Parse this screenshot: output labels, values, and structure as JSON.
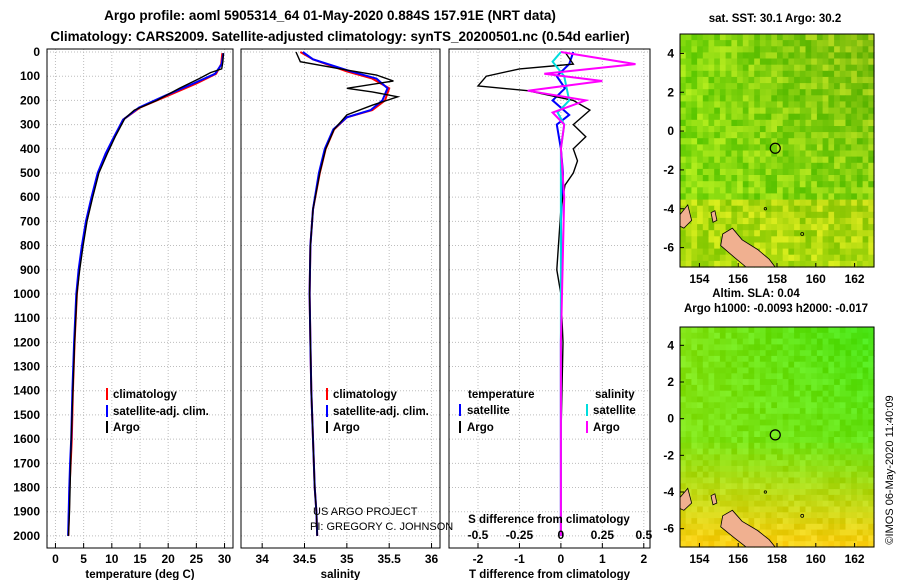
{
  "title_line1": "Argo profile: aoml 5905314_64 01-May-2020 0.884S 157.91E (NRT data)",
  "title_line2": "Climatology: CARS2009. Satellite-adjusted climatology: synTS_20200501.nc (0.54d earlier)",
  "credit": "©IMOS 06-May-2020 11:40:09",
  "project_line1": "US ARGO PROJECT",
  "project_line2": "PI: GREGORY C. JOHNSON",
  "colors": {
    "climatology": "#ff0000",
    "satellite": "#0000ff",
    "argo": "#000000",
    "sat_T": "#00dddd",
    "sat_S": "#ff00ff"
  },
  "chart_data": [
    {
      "type": "line",
      "title": "",
      "xlabel": "temperature (deg C)",
      "ylabel": "",
      "xlim": [
        -1.5,
        31.5
      ],
      "ylim": [
        2050,
        0
      ],
      "xticks": [
        "0",
        "5",
        "10",
        "15",
        "20",
        "25",
        "30"
      ],
      "xtick_values": [
        0,
        5,
        10,
        15,
        20,
        25,
        30
      ],
      "yticks": [
        "0",
        "100",
        "200",
        "300",
        "400",
        "500",
        "600",
        "700",
        "800",
        "900",
        "1000",
        "1100",
        "1200",
        "1300",
        "1400",
        "1500",
        "1600",
        "1700",
        "1800",
        "1900",
        "2000"
      ],
      "ytick_values": [
        0,
        100,
        200,
        300,
        400,
        500,
        600,
        700,
        800,
        900,
        1000,
        1100,
        1200,
        1300,
        1400,
        1500,
        1600,
        1700,
        1800,
        1900,
        2000
      ],
      "legend": [
        "climatology",
        "satellite-adj. clim.",
        "Argo"
      ],
      "series": [
        {
          "name": "climatology",
          "x": [
            29.6,
            29.4,
            28.5,
            25,
            20,
            15,
            12,
            10.5,
            9,
            7.6,
            6.5,
            5.5,
            4.8,
            4.2,
            3.8,
            3.4,
            3.1,
            2.9,
            2.7,
            2.5,
            2.4,
            2.3
          ],
          "y": [
            5,
            50,
            90,
            130,
            180,
            230,
            280,
            350,
            420,
            500,
            600,
            700,
            800,
            900,
            1000,
            1200,
            1400,
            1600,
            1700,
            1800,
            1900,
            2000
          ]
        },
        {
          "name": "satellite-adj. clim.",
          "x": [
            29.8,
            29.5,
            28.3,
            24.5,
            19.5,
            14.8,
            12,
            10.4,
            8.9,
            7.5,
            6.4,
            5.4,
            4.7,
            4.1,
            3.7,
            3.3,
            3.0,
            2.8,
            2.6,
            2.45,
            2.35,
            2.25
          ],
          "y": [
            5,
            50,
            90,
            130,
            180,
            230,
            280,
            350,
            420,
            500,
            600,
            700,
            800,
            900,
            1000,
            1200,
            1400,
            1600,
            1700,
            1800,
            1900,
            2000
          ]
        },
        {
          "name": "Argo",
          "x": [
            29.8,
            29.7,
            29.5,
            27.5,
            25.5,
            22,
            18,
            14,
            12.3,
            10.6,
            9.2,
            7.7,
            6.6,
            5.6,
            4.9,
            4.3,
            3.8,
            3.4,
            3.1,
            2.8,
            2.6,
            2.5,
            2.3
          ],
          "y": [
            5,
            40,
            70,
            85,
            110,
            150,
            200,
            240,
            275,
            350,
            420,
            500,
            600,
            700,
            800,
            900,
            1000,
            1200,
            1400,
            1600,
            1800,
            1900,
            2000
          ]
        }
      ]
    },
    {
      "type": "line",
      "xlabel": "salinity",
      "xlim": [
        33.75,
        36.1
      ],
      "ylim": [
        2050,
        0
      ],
      "xticks": [
        "34",
        "34.5",
        "35",
        "35.5",
        "36"
      ],
      "xtick_values": [
        34,
        34.5,
        35,
        35.5,
        36
      ],
      "legend": [
        "climatology",
        "satellite-adj. clim.",
        "Argo"
      ],
      "series": [
        {
          "name": "climatology",
          "x": [
            34.45,
            34.6,
            35.0,
            35.3,
            35.5,
            35.45,
            35.3,
            35.0,
            34.85,
            34.75,
            34.68,
            34.6,
            34.57,
            34.56,
            34.57,
            34.58,
            34.6,
            34.62,
            34.64,
            34.65
          ],
          "y": [
            0,
            30,
            80,
            110,
            150,
            200,
            240,
            270,
            320,
            400,
            500,
            650,
            800,
            1000,
            1200,
            1400,
            1600,
            1800,
            1900,
            2000
          ]
        },
        {
          "name": "satellite-adj. clim.",
          "x": [
            34.48,
            34.6,
            35.05,
            35.35,
            35.48,
            35.42,
            35.28,
            35.0,
            34.84,
            34.74,
            34.67,
            34.6,
            34.57,
            34.56,
            34.57,
            34.58,
            34.6,
            34.62,
            34.64,
            34.65
          ],
          "y": [
            0,
            30,
            80,
            110,
            150,
            200,
            240,
            270,
            320,
            400,
            500,
            650,
            800,
            1000,
            1200,
            1400,
            1600,
            1800,
            1900,
            2000
          ]
        },
        {
          "name": "Argo",
          "x": [
            34.4,
            34.45,
            35.0,
            35.35,
            35.55,
            35.0,
            35.3,
            35.6,
            35.3,
            35.0,
            34.85,
            34.75,
            34.68,
            34.6,
            34.57,
            34.56,
            34.57,
            34.58,
            34.6,
            34.62,
            34.64,
            34.65
          ],
          "y": [
            0,
            40,
            75,
            95,
            120,
            150,
            165,
            185,
            220,
            260,
            320,
            400,
            500,
            650,
            800,
            1000,
            1200,
            1400,
            1600,
            1800,
            1900,
            2000
          ]
        }
      ]
    },
    {
      "type": "line",
      "xlabel": "T difference from climatology",
      "xlim": [
        -2.7,
        2.15
      ],
      "ylim": [
        2050,
        0
      ],
      "xticks": [
        "-2",
        "-1",
        "0",
        "1",
        "2"
      ],
      "xtick_values": [
        -2,
        -1,
        0,
        1,
        2
      ],
      "top_xlabel": "S difference from climatology",
      "top_xticks": [
        "-0.5",
        "-0.25",
        "0",
        "0.25",
        "0.5"
      ],
      "top_xtick_values": [
        -0.5,
        -0.25,
        0,
        0.25,
        0.5
      ],
      "legend_temperature_header": "temperature",
      "legend_salinity_header": "salinity",
      "legend_temperature": [
        "satellite",
        "Argo"
      ],
      "legend_salinity": [
        "satellite",
        "Argo"
      ],
      "series": [
        {
          "name": "T satellite",
          "x": [
            0.3,
            0.2,
            -0.1,
            0.1,
            -0.2,
            0.2,
            -0.1,
            0.0,
            0.05,
            0.0,
            0.02,
            0.0,
            0.0,
            0.0,
            0.0
          ],
          "y": [
            0,
            50,
            100,
            150,
            200,
            260,
            300,
            400,
            500,
            700,
            900,
            1200,
            1500,
            1800,
            2000
          ]
        },
        {
          "name": "T Argo",
          "x": [
            0.1,
            0.3,
            -1.0,
            -1.8,
            -2.0,
            -0.8,
            0.3,
            0.7,
            0.3,
            0.6,
            0.3,
            0.4,
            0.3,
            0.1,
            0.0,
            -0.1,
            0.0,
            0.05,
            0.0,
            0.0
          ],
          "y": [
            0,
            50,
            70,
            100,
            140,
            160,
            200,
            240,
            300,
            350,
            400,
            450,
            500,
            550,
            650,
            900,
            1000,
            1200,
            1600,
            2000
          ]
        },
        {
          "name": "S satellite",
          "x": [
            0.0,
            -0.05,
            0.02,
            0.05,
            -0.02,
            0.02,
            0.0,
            0.0,
            0.0,
            0.0
          ],
          "y": [
            0,
            40,
            100,
            200,
            250,
            300,
            400,
            700,
            1200,
            2000
          ]
        },
        {
          "name": "S Argo",
          "x": [
            0.0,
            0.45,
            -0.1,
            0.25,
            -0.2,
            0.15,
            -0.05,
            0.02,
            0.0,
            0.02,
            0.0,
            0.0
          ],
          "y": [
            0,
            50,
            90,
            120,
            160,
            200,
            250,
            300,
            400,
            600,
            1200,
            2000
          ]
        }
      ]
    },
    {
      "type": "heatmap",
      "title": "sat. SST: 30.1 Argo: 30.2",
      "xlim": [
        153,
        163
      ],
      "ylim": [
        -7,
        5
      ],
      "xticks": [
        "154",
        "156",
        "158",
        "160",
        "162"
      ],
      "xtick_values": [
        154,
        156,
        158,
        160,
        162
      ],
      "yticks": [
        "4",
        "2",
        "0",
        "-2",
        "-4",
        "-6"
      ],
      "ytick_values": [
        4,
        2,
        0,
        -2,
        -4,
        -6
      ],
      "marker_lon": 157.91,
      "marker_lat": -0.884
    },
    {
      "type": "heatmap",
      "title_line1": "Altim. SLA: 0.04",
      "title_line2": "Argo h1000: -0.0093 h2000: -0.017",
      "xlim": [
        153,
        163
      ],
      "ylim": [
        -7,
        5
      ],
      "xticks": [
        "154",
        "156",
        "158",
        "160",
        "162"
      ],
      "xtick_values": [
        154,
        156,
        158,
        160,
        162
      ],
      "yticks": [
        "4",
        "2",
        "0",
        "-2",
        "-4",
        "-6"
      ],
      "ytick_values": [
        4,
        2,
        0,
        -2,
        -4,
        -6
      ],
      "marker_lon": 157.91,
      "marker_lat": -0.884
    }
  ]
}
